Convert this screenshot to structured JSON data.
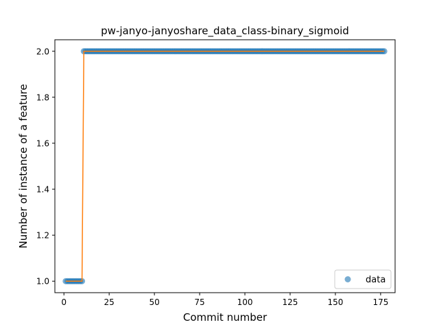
{
  "chart_data": {
    "type": "scatter",
    "title": "pw-janyo-janyoshare_data_class-binary_sigmoid",
    "xlabel": "Commit number",
    "ylabel": "Number of instance of a feature",
    "xlim": [
      -5,
      183
    ],
    "ylim": [
      0.95,
      2.05
    ],
    "xticks": [
      0,
      25,
      50,
      75,
      100,
      125,
      150,
      175
    ],
    "yticks": [
      1.0,
      1.2,
      1.4,
      1.6,
      1.8,
      2.0
    ],
    "ytick_labels": [
      "1.0",
      "1.2",
      "1.4",
      "1.6",
      "1.8",
      "2.0"
    ],
    "grid": false,
    "legend": {
      "position": "lower-right",
      "entries": [
        "data"
      ]
    },
    "colors": {
      "points": "#1f77b4",
      "fit_line": "#ff7f0e"
    },
    "series": [
      {
        "name": "data",
        "marker": "circle",
        "segments": [
          {
            "x_start": 1,
            "x_end": 10,
            "y": 1
          },
          {
            "x_start": 11,
            "x_end": 177,
            "y": 2
          }
        ]
      },
      {
        "style": "line",
        "x": [
          1,
          10,
          11,
          177
        ],
        "y": [
          1,
          1,
          2,
          2
        ]
      }
    ]
  }
}
